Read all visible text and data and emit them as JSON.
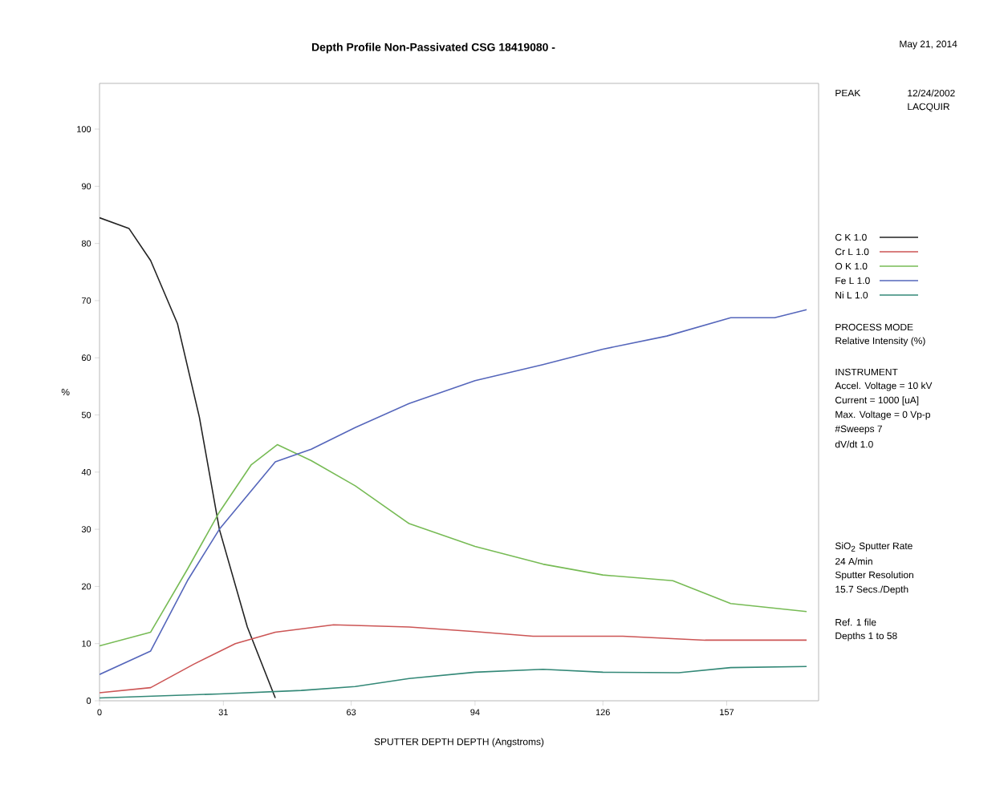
{
  "chart_data": {
    "type": "line",
    "title": "Depth Profile Non-Passivated CSG 18419080 -",
    "xlabel": "SPUTTER DEPTH    DEPTH (Angstroms)",
    "ylabel": "%",
    "xlim": [
      0,
      180
    ],
    "xticks": [
      0,
      31,
      63,
      94,
      126,
      157
    ],
    "ylim": [
      0,
      108
    ],
    "yticks": [
      0,
      10,
      20,
      30,
      40,
      50,
      60,
      70,
      80,
      90,
      100
    ],
    "grid": false,
    "legend": "right",
    "line_style": "solid",
    "marker": "none",
    "series": [
      {
        "name": "C K   1.0",
        "color": "#222222",
        "x": [
          0,
          7.4,
          12.8,
          19.5,
          25,
          30,
          37,
          44
        ],
        "values": [
          84.5,
          82.6,
          77,
          66,
          49.6,
          30,
          12.9,
          0.5
        ]
      },
      {
        "name": "Cr L   1.0",
        "color": "#cc5555",
        "x": [
          0,
          12.8,
          23.6,
          34,
          44,
          58.6,
          77.5,
          94,
          108.5,
          131,
          151.6,
          177
        ],
        "values": [
          1.4,
          2.3,
          6.4,
          10,
          12,
          13.3,
          12.9,
          12.1,
          11.3,
          11.3,
          10.6,
          10.6
        ]
      },
      {
        "name": "O K   1.0",
        "color": "#77bb55",
        "x": [
          0,
          12.8,
          22,
          30,
          38,
          44.5,
          53,
          64,
          77.5,
          94,
          111,
          126,
          143.5,
          158,
          177
        ],
        "values": [
          9.6,
          12,
          23,
          33,
          41.3,
          44.8,
          42,
          37.6,
          31,
          27,
          23.9,
          22,
          21,
          17,
          15.6
        ]
      },
      {
        "name": "Fe L   1.0",
        "color": "#5566bb",
        "x": [
          0,
          12.8,
          22,
          30,
          44,
          53,
          64,
          77.5,
          94,
          111,
          126,
          142,
          158,
          169,
          177
        ],
        "values": [
          4.6,
          8.7,
          21,
          30,
          41.8,
          44,
          47.8,
          52,
          56,
          58.8,
          61.5,
          63.8,
          67,
          67,
          68.4
        ]
      },
      {
        "name": "Ni L   1.0",
        "color": "#338877",
        "x": [
          0,
          30,
          50.5,
          64,
          77.5,
          94,
          111,
          126,
          145,
          158,
          177
        ],
        "values": [
          0.5,
          1.2,
          1.8,
          2.5,
          3.9,
          5,
          5.5,
          5,
          4.9,
          5.8,
          6
        ]
      }
    ],
    "annotations": [
      "May 21, 2014",
      "PEAK",
      "12/24/2002",
      "LACQUIR",
      "PROCESS MODE",
      "Relative Intensity (%)",
      "INSTRUMENT",
      "Accel. Voltage = 10 kV",
      "Current = 1000 [uA]",
      "Max. Voltage = 0 Vp-p",
      "#Sweeps  7",
      "dV/dt  1.0",
      "SiO$_{2}$ Sputter Rate",
      "24 A/min",
      "Sputter Resolution",
      "15.7 Secs./Depth",
      "Ref. 1 file",
      "Depths  1 to 58"
    ]
  }
}
